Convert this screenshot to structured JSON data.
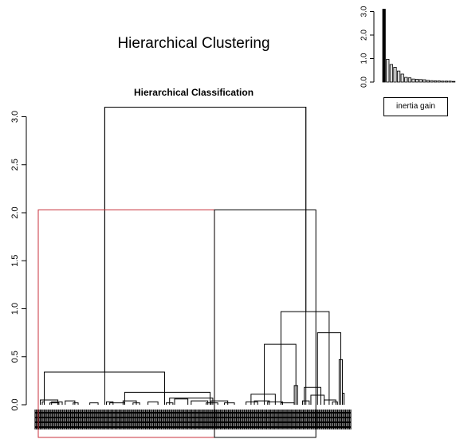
{
  "title": "Hierarchical Clustering",
  "chart_data": [
    {
      "type": "dendrogram",
      "title": "Hierarchical Classification",
      "ylim": [
        0,
        3.2
      ],
      "yticks": [
        "0.0",
        "0.5",
        "1.0",
        "1.5",
        "2.0",
        "2.5",
        "3.0"
      ],
      "root_height": 3.1,
      "merges": [
        {
          "x1": 0.06,
          "x2": 0.59,
          "h": 0.05
        },
        {
          "x1": 0.12,
          "x2": 0.18,
          "h": 0.03
        },
        {
          "x1": 0.35,
          "x2": 0.62,
          "h": 0.02
        },
        {
          "x1": 0.4,
          "x2": 0.72,
          "h": 0.03
        },
        {
          "x1": 0.81,
          "x2": 1.1,
          "h": 0.04
        },
        {
          "x1": 1.05,
          "x2": 1.2,
          "h": 0.02
        },
        {
          "x1": 1.55,
          "x2": 1.8,
          "h": 0.02
        },
        {
          "x1": 2.05,
          "x2": 2.25,
          "h": 0.03
        },
        {
          "x1": 2.15,
          "x2": 2.6,
          "h": 0.02
        },
        {
          "x1": 2.55,
          "x2": 2.95,
          "h": 0.04
        },
        {
          "x1": 2.85,
          "x2": 3.05,
          "h": 0.02
        },
        {
          "x1": 3.3,
          "x2": 3.6,
          "h": 0.03
        },
        {
          "x1": 3.85,
          "x2": 4.05,
          "h": 0.02
        },
        {
          "x1": 4.1,
          "x2": 4.5,
          "h": 0.06
        },
        {
          "x1": 4.6,
          "x2": 5.1,
          "h": 0.04
        },
        {
          "x1": 5.05,
          "x2": 5.4,
          "h": 0.02
        },
        {
          "x1": 5.2,
          "x2": 5.7,
          "h": 0.04
        },
        {
          "x1": 5.6,
          "x2": 5.9,
          "h": 0.02
        },
        {
          "x1": 2.6,
          "x2": 5.17,
          "h": 0.13
        },
        {
          "x1": 3.95,
          "x2": 5.25,
          "h": 0.07
        },
        {
          "x1": 0.18,
          "x2": 3.8,
          "h": 0.34
        },
        {
          "x1": 6.25,
          "x2": 6.6,
          "h": 0.03
        },
        {
          "x1": 6.5,
          "x2": 6.95,
          "h": 0.04
        },
        {
          "x1": 6.9,
          "x2": 7.35,
          "h": 0.03
        },
        {
          "x1": 7.3,
          "x2": 7.7,
          "h": 0.02
        },
        {
          "x1": 6.4,
          "x2": 7.13,
          "h": 0.11
        },
        {
          "x1": 7.7,
          "x2": 7.8,
          "h": 0.2
        },
        {
          "x1": 7.95,
          "x2": 8.15,
          "h": 0.04
        },
        {
          "x1": 8.0,
          "x2": 8.5,
          "h": 0.18
        },
        {
          "x1": 8.2,
          "x2": 8.6,
          "h": 0.1
        },
        {
          "x1": 8.6,
          "x2": 8.95,
          "h": 0.05
        },
        {
          "x1": 8.85,
          "x2": 9.0,
          "h": 0.03
        },
        {
          "x1": 9.05,
          "x2": 9.15,
          "h": 0.47
        },
        {
          "x1": 9.15,
          "x2": 9.2,
          "h": 0.12
        },
        {
          "x1": 6.8,
          "x2": 7.75,
          "h": 0.63
        },
        {
          "x1": 8.4,
          "x2": 9.1,
          "h": 0.75
        },
        {
          "x1": 7.3,
          "x2": 8.75,
          "h": 0.97
        },
        {
          "x1": 2.0,
          "x2": 8.05,
          "h": 3.1
        }
      ],
      "clusters": [
        {
          "x_range": [
            0.0,
            5.3
          ],
          "height": 2.03,
          "color": "#c8323c"
        },
        {
          "x_range": [
            5.3,
            8.35
          ],
          "height": 2.03,
          "color": "#000000"
        }
      ]
    },
    {
      "type": "bar",
      "legend": "inertia gain",
      "yticks": [
        "0.0",
        "1.0",
        "2.0",
        "3.0"
      ],
      "ylim": [
        0,
        3.2
      ],
      "values": [
        3.1,
        0.97,
        0.75,
        0.63,
        0.47,
        0.34,
        0.2,
        0.18,
        0.13,
        0.12,
        0.11,
        0.1,
        0.07,
        0.06,
        0.05,
        0.05,
        0.04,
        0.04,
        0.04,
        0.03
      ]
    }
  ]
}
